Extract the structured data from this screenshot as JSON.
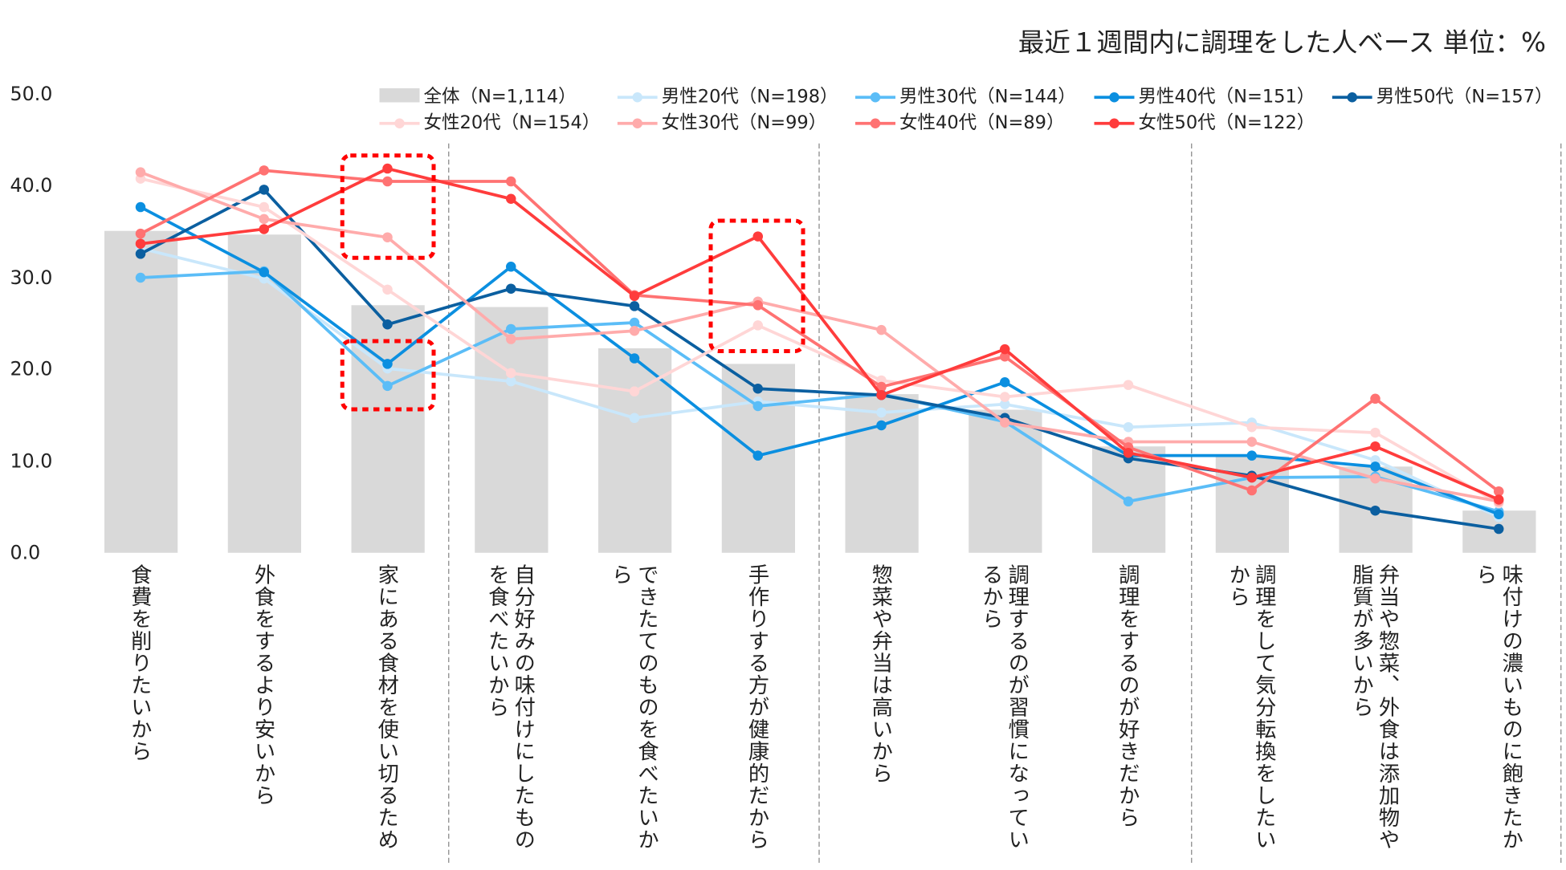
{
  "note": "最近１週間内に調理をした人ベース 単位：%",
  "chart_data": {
    "type": "bar+line",
    "ylim": [
      0,
      50
    ],
    "yticks": [
      "0.0",
      "10.0",
      "20.0",
      "30.0",
      "40.0",
      "50.0"
    ],
    "categories": [
      "食費を削りたいから",
      "外食をするより安いから",
      "家にある食材を使い切るため",
      "自分好みの味付けにしたものを食べたいから",
      "できたてのものを食べたいから",
      "手作りする方が健康的だから",
      "惣菜や弁当は高いから",
      "調理するのが習慣になっているから",
      "調理をするのが好きだから",
      "調理をして気分転換をしたいから",
      "弁当や惣菜、外食は添加物や脂質が多いから",
      "味付けの濃いものに飽きたから"
    ],
    "bar_series": {
      "name": "全体（N=1,114）",
      "color": "#d9d9d9",
      "values": [
        35.1,
        34.7,
        27.0,
        26.8,
        22.3,
        20.6,
        17.3,
        15.6,
        11.6,
        10.5,
        9.4,
        4.6
      ]
    },
    "series": [
      {
        "name": "男性20代（N=198）",
        "color": "#c9e7fb",
        "values": [
          33.2,
          29.9,
          20.1,
          18.7,
          14.7,
          16.5,
          15.3,
          16.2,
          13.7,
          14.2,
          10.1,
          3.9
        ]
      },
      {
        "name": "男性30代（N=144）",
        "color": "#5bbdf7",
        "values": [
          30.0,
          30.7,
          18.2,
          24.4,
          25.1,
          16.0,
          17.3,
          14.3,
          5.6,
          8.2,
          8.3,
          4.5
        ]
      },
      {
        "name": "男性40代（N=151）",
        "color": "#0b8fe0",
        "values": [
          37.7,
          30.6,
          20.6,
          31.2,
          21.2,
          10.6,
          13.9,
          18.6,
          10.6,
          10.6,
          9.4,
          4.2
        ]
      },
      {
        "name": "男性50代（N=157）",
        "color": "#0b5fa0",
        "values": [
          32.6,
          39.6,
          24.9,
          28.8,
          26.9,
          17.9,
          17.2,
          14.7,
          10.3,
          8.4,
          4.6,
          2.6
        ]
      },
      {
        "name": "女性20代（N=154）",
        "color": "#ffd6d6",
        "values": [
          40.8,
          37.7,
          28.7,
          19.6,
          17.6,
          24.8,
          18.8,
          17.0,
          18.3,
          13.7,
          13.1,
          5.4
        ]
      },
      {
        "name": "女性30代（N=99）",
        "color": "#ffabab",
        "values": [
          41.5,
          36.4,
          34.4,
          23.3,
          24.2,
          27.4,
          24.3,
          14.2,
          12.1,
          12.1,
          8.1,
          5.6
        ]
      },
      {
        "name": "女性40代（N=89）",
        "color": "#ff7272",
        "values": [
          34.8,
          41.7,
          40.5,
          40.5,
          28.1,
          27.0,
          18.1,
          21.4,
          11.5,
          6.8,
          16.8,
          6.7
        ]
      },
      {
        "name": "女性50代（N=122）",
        "color": "#ff3c3c",
        "values": [
          33.7,
          35.3,
          41.9,
          38.6,
          28.0,
          34.5,
          17.2,
          22.2,
          10.9,
          8.2,
          11.6,
          5.8
        ]
      }
    ],
    "grid": false,
    "legend": "top",
    "highlight_color": "#ff0000"
  }
}
